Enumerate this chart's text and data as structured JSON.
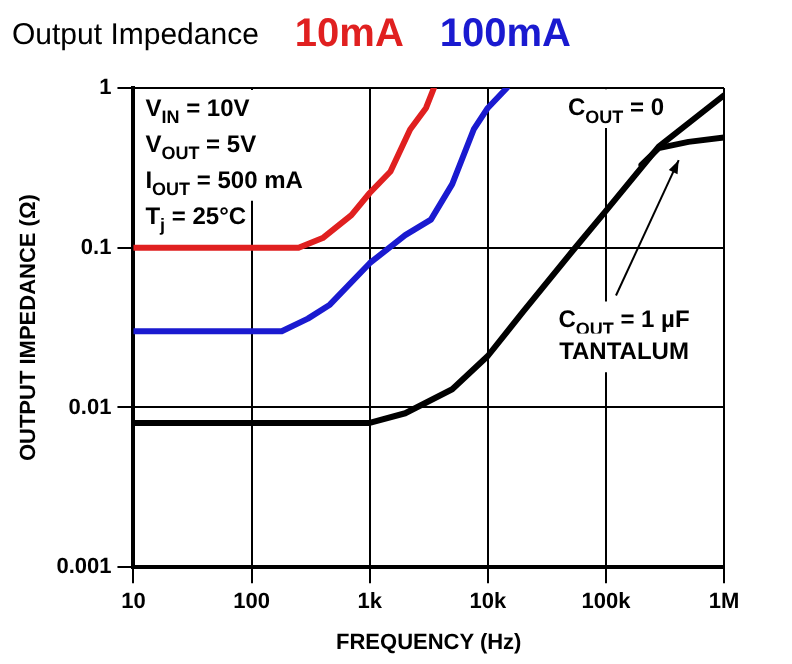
{
  "chart_data": {
    "type": "line",
    "title": "Output Impedance",
    "xlabel": "FREQUENCY (Hz)",
    "ylabel": "OUTPUT IMPEDANCE (Ω)",
    "log": "xy",
    "grid": true,
    "legend": false,
    "marker": "none",
    "line_style": "solid",
    "xlim": [
      10,
      1000000
    ],
    "xticks": [
      10,
      100,
      {
        "value": 1000,
        "label": "1k"
      },
      {
        "value": 10000,
        "label": "10k"
      },
      {
        "value": 100000,
        "label": "100k"
      },
      {
        "value": 1000000,
        "label": "1M"
      }
    ],
    "ylim": [
      0.001,
      1
    ],
    "yticks": [
      0.001,
      0.01,
      0.1,
      1
    ],
    "annotations": [
      "V$_{IN}$ = 10V",
      "V$_{OUT}$ = 5V",
      "I$_{OUT}$ = 500 mA",
      "T$_{j}$ = 25°C"
    ],
    "series": [
      {
        "name": "10mA",
        "color": "#e02020",
        "x": [
          10,
          100,
          250,
          400,
          700,
          1000,
          1500,
          2200,
          3000,
          3500
        ],
        "values": [
          0.1,
          0.1,
          0.1,
          0.115,
          0.16,
          0.22,
          0.3,
          0.55,
          0.75,
          1
        ]
      },
      {
        "name": "100mA",
        "color": "#1a1ad0",
        "x": [
          10,
          100,
          180,
          300,
          460,
          1000,
          2000,
          3300,
          5000,
          7600,
          10000,
          14500
        ],
        "values": [
          0.03,
          0.03,
          0.03,
          0.036,
          0.044,
          0.08,
          0.12,
          0.15,
          0.25,
          0.55,
          0.75,
          1
        ]
      },
      {
        "name": "C$_{OUT}$ = 0",
        "color": "#000000",
        "x": [
          10,
          1000,
          2000,
          5000,
          10000,
          20000,
          55000,
          100000,
          280000,
          1000000
        ],
        "values": [
          0.008,
          0.008,
          0.0092,
          0.013,
          0.021,
          0.04,
          0.1,
          0.17,
          0.43,
          0.9
        ]
      },
      {
        "name": "C$_{OUT}$ = 1 µF TANTALUM",
        "color": "#000000",
        "x": [
          200000,
          280000,
          500000,
          1000000
        ],
        "values": [
          0.33,
          0.42,
          0.46,
          0.49
        ]
      }
    ]
  }
}
